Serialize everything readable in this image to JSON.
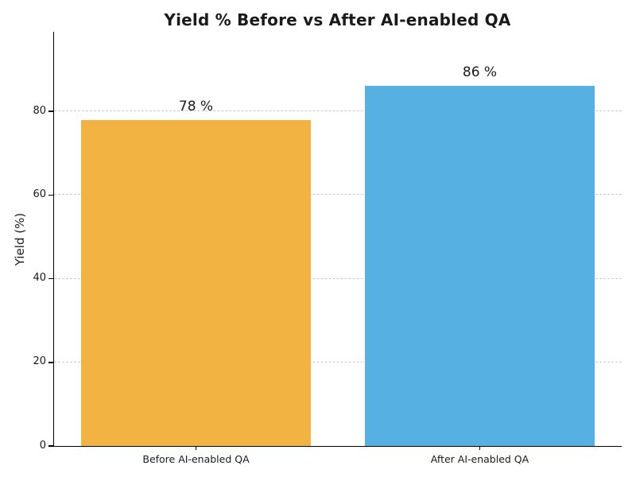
{
  "chart_data": {
    "type": "bar",
    "title": "Yield % Before vs After AI-enabled QA",
    "ylabel": "Yield (%)",
    "xlabel": "",
    "categories": [
      "Before AI-enabled QA",
      "After AI-enabled QA"
    ],
    "values": [
      78,
      86
    ],
    "value_labels": [
      "78 %",
      "86 %"
    ],
    "bar_colors": [
      "#F2B342",
      "#56B1E2"
    ],
    "yticks": [
      0,
      20,
      40,
      60,
      80
    ],
    "ylim": [
      0,
      99
    ],
    "grid": "horizontal-dashed",
    "legend": "none",
    "background_color": "#ffffff",
    "grid_color": "#c9c9c9",
    "axis_color": "#000000",
    "text_color": "#1a1a1a"
  }
}
